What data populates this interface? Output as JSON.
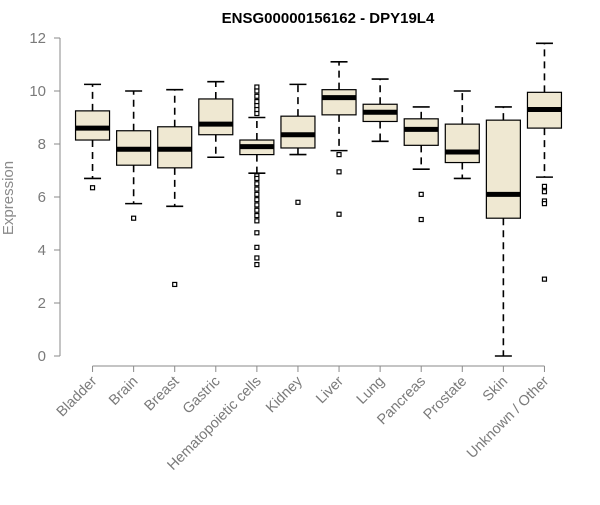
{
  "chart_data": {
    "type": "boxplot",
    "title": "ENSG00000156162 - DPY19L4",
    "xlabel": "",
    "ylabel": "Expression",
    "ylim": [
      0,
      12
    ],
    "yticks": [
      0,
      2,
      4,
      6,
      8,
      10,
      12
    ],
    "grid": false,
    "legend": "none",
    "box_color": "#EFE8D2",
    "median_color": "#000000",
    "categories": [
      "Bladder",
      "Brain",
      "Breast",
      "Gastric",
      "Hematopoietic cells",
      "Kidney",
      "Liver",
      "Lung",
      "Pancreas",
      "Prostate",
      "Skin",
      "Unknown / Other"
    ],
    "boxes": [
      {
        "whisker_low": 6.7,
        "q1": 8.15,
        "median": 8.6,
        "q3": 9.25,
        "whisker_high": 10.25,
        "outliers": [
          6.35
        ]
      },
      {
        "whisker_low": 5.75,
        "q1": 7.2,
        "median": 7.8,
        "q3": 8.5,
        "whisker_high": 10.0,
        "outliers": [
          5.2
        ]
      },
      {
        "whisker_low": 5.65,
        "q1": 7.1,
        "median": 7.8,
        "q3": 8.65,
        "whisker_high": 10.05,
        "outliers": [
          2.7
        ]
      },
      {
        "whisker_low": 7.5,
        "q1": 8.35,
        "median": 8.75,
        "q3": 9.7,
        "whisker_high": 10.35,
        "outliers": []
      },
      {
        "whisker_low": 6.9,
        "q1": 7.6,
        "median": 7.9,
        "q3": 8.15,
        "whisker_high": 9.0,
        "outliers": [
          10.15,
          10.0,
          9.8,
          9.6,
          9.45,
          9.3,
          9.15,
          6.8,
          6.7,
          6.5,
          6.3,
          6.1,
          5.9,
          5.7,
          5.5,
          5.3,
          5.1,
          4.65,
          4.1,
          3.7,
          3.45
        ]
      },
      {
        "whisker_low": 7.6,
        "q1": 7.85,
        "median": 8.35,
        "q3": 9.05,
        "whisker_high": 10.25,
        "outliers": [
          5.8
        ]
      },
      {
        "whisker_low": 7.75,
        "q1": 9.1,
        "median": 9.75,
        "q3": 10.05,
        "whisker_high": 11.1,
        "outliers": [
          7.6,
          6.95,
          5.35
        ]
      },
      {
        "whisker_low": 8.1,
        "q1": 8.85,
        "median": 9.2,
        "q3": 9.5,
        "whisker_high": 10.45,
        "outliers": []
      },
      {
        "whisker_low": 7.05,
        "q1": 7.95,
        "median": 8.55,
        "q3": 8.95,
        "whisker_high": 9.4,
        "outliers": [
          6.1,
          5.15
        ]
      },
      {
        "whisker_low": 6.7,
        "q1": 7.3,
        "median": 7.7,
        "q3": 8.75,
        "whisker_high": 10.0,
        "outliers": []
      },
      {
        "whisker_low": 0.0,
        "q1": 5.2,
        "median": 6.1,
        "q3": 8.9,
        "whisker_high": 9.4,
        "outliers": []
      },
      {
        "whisker_low": 6.75,
        "q1": 8.6,
        "median": 9.3,
        "q3": 9.95,
        "whisker_high": 11.8,
        "outliers": [
          6.4,
          6.2,
          5.85,
          5.75,
          2.9
        ]
      }
    ]
  }
}
